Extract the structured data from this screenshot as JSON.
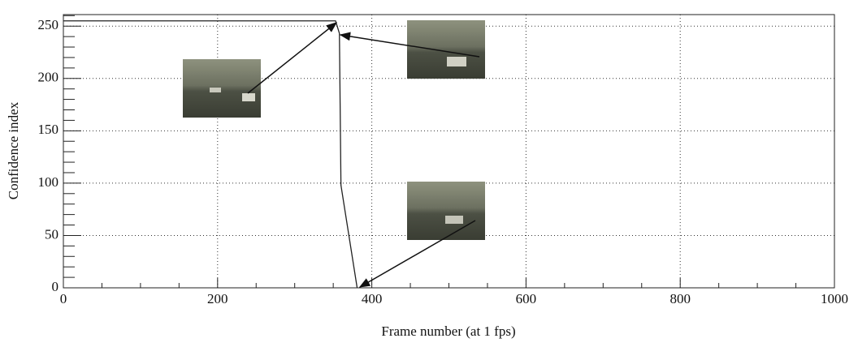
{
  "chart_data": {
    "type": "line",
    "x_label": "Frame number (at 1 fps)",
    "y_label": "Confidence index",
    "x": [
      0,
      353,
      358,
      360,
      381
    ],
    "series": [
      {
        "color": "#222222",
        "values": [
          255,
          255,
          243,
          98,
          0
        ]
      }
    ],
    "xlim": [
      0,
      1000
    ],
    "ylim": [
      0,
      261
    ],
    "xticks": [
      0,
      200,
      400,
      600,
      800,
      1000
    ],
    "yticks": [
      0,
      50,
      100,
      150,
      200,
      250
    ],
    "xminorticks": [
      50,
      100,
      150,
      250,
      300,
      350,
      450,
      500,
      550,
      650,
      700,
      750,
      850,
      900,
      950
    ],
    "yminorticks": [
      10,
      20,
      30,
      40,
      60,
      70,
      80,
      90,
      110,
      120,
      130,
      140,
      160,
      170,
      180,
      190,
      210,
      220,
      230,
      240,
      260
    ],
    "grid": true
  }
}
